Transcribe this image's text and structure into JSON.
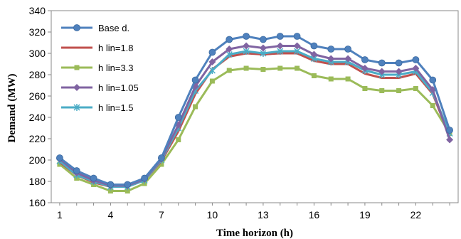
{
  "chart_data": {
    "type": "line",
    "title": "",
    "xlabel": "Time horizon (h)",
    "ylabel": "Demand (MW)",
    "ylim": [
      160,
      340
    ],
    "yticks": [
      160,
      180,
      200,
      220,
      240,
      260,
      280,
      300,
      320,
      340
    ],
    "xlim": [
      0.5,
      24.5
    ],
    "xticks": [
      1,
      4,
      7,
      10,
      13,
      16,
      19,
      22
    ],
    "grid": false,
    "legend": "top-left",
    "x": [
      1,
      2,
      3,
      4,
      5,
      6,
      7,
      8,
      9,
      10,
      11,
      12,
      13,
      14,
      15,
      16,
      17,
      18,
      19,
      20,
      21,
      22,
      23,
      24
    ],
    "series": [
      {
        "name": "h lin=3.3",
        "color": "#9BBB59",
        "marker": "square",
        "values": [
          196,
          183,
          177,
          171,
          171,
          178,
          196,
          219,
          250,
          274,
          284,
          286,
          285,
          286,
          286,
          279,
          276,
          276,
          267,
          265,
          265,
          267,
          251,
          225
        ]
      },
      {
        "name": "h lin=1.8",
        "color": "#C0504D",
        "marker": "none",
        "values": [
          198,
          186,
          179,
          175,
          175,
          181,
          199,
          227,
          262,
          285,
          297,
          300,
          299,
          300,
          300,
          293,
          290,
          290,
          281,
          277,
          277,
          281,
          262,
          222
        ]
      },
      {
        "name": "h lin=1.5",
        "color": "#4BACC6",
        "marker": "star",
        "values": [
          199,
          186,
          180,
          175,
          175,
          181,
          200,
          230,
          265,
          284,
          299,
          302,
          300,
          302,
          302,
          295,
          292,
          292,
          284,
          280,
          280,
          283,
          263,
          225
        ]
      },
      {
        "name": "h lin=1.05",
        "color": "#8064A2",
        "marker": "diamond",
        "values": [
          201,
          188,
          181,
          176,
          176,
          182,
          201,
          233,
          269,
          292,
          304,
          307,
          305,
          307,
          307,
          299,
          295,
          295,
          286,
          283,
          283,
          286,
          266,
          219
        ]
      },
      {
        "name": "Base d.",
        "color": "#4F81BD",
        "marker": "circle",
        "values": [
          202,
          190,
          183,
          177,
          177,
          183,
          202,
          240,
          275,
          301,
          313,
          316,
          313,
          316,
          316,
          307,
          304,
          304,
          294,
          291,
          291,
          294,
          275,
          228
        ]
      }
    ],
    "legend_order": [
      "Base d.",
      "h lin=1.8",
      "h lin=3.3",
      "h lin=1.05",
      "h lin=1.5"
    ]
  }
}
